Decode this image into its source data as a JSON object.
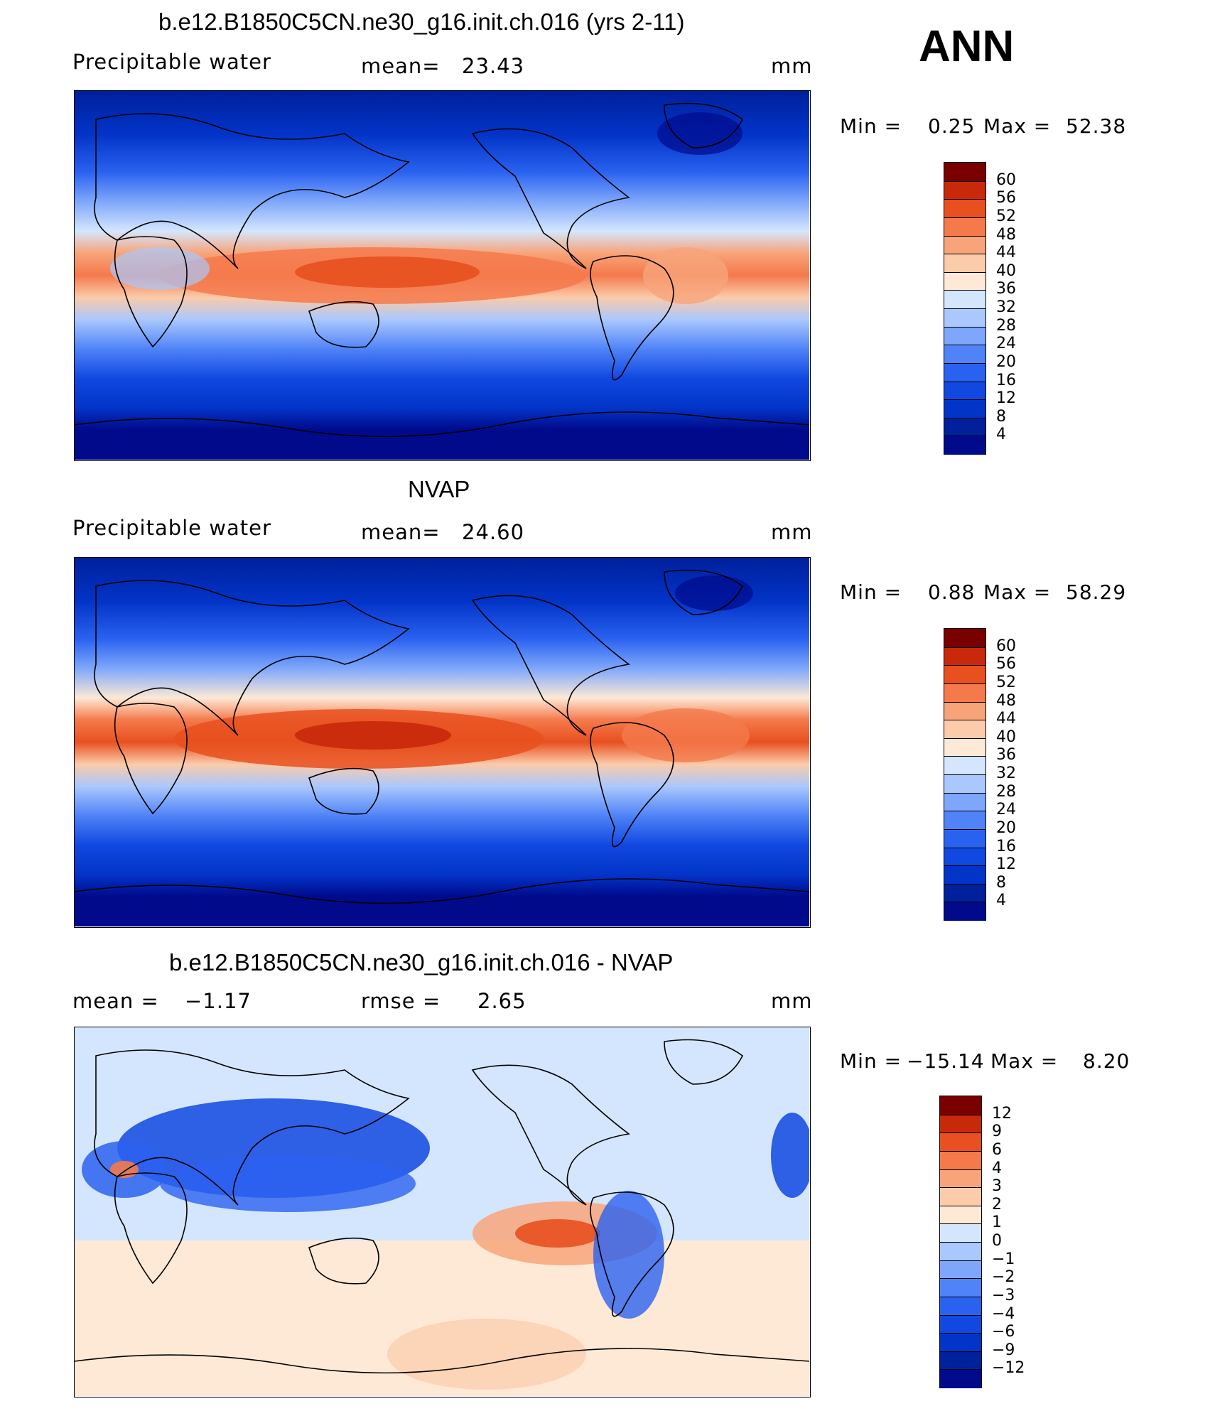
{
  "season": "ANN",
  "panels": [
    {
      "id": "model",
      "title": "b.e12.B1850C5CN.ne30_g16.init.ch.016 (yrs 2-11)",
      "left_text": "Precipitable  water",
      "stat_label": "mean=",
      "stat_value": "23.43",
      "units": "mm",
      "min_label": "Min  =",
      "min_value": "0.25",
      "max_label": "Max  =",
      "max_value": "52.38",
      "levels": [
        "60",
        "56",
        "52",
        "48",
        "44",
        "40",
        "36",
        "32",
        "28",
        "24",
        "20",
        "16",
        "12",
        "8",
        "4"
      ]
    },
    {
      "id": "obs",
      "title": "NVAP",
      "left_text": "Precipitable  water",
      "stat_label": "mean=",
      "stat_value": "24.60",
      "units": "mm",
      "min_label": "Min  =",
      "min_value": "0.88",
      "max_label": "Max  =",
      "max_value": "58.29",
      "levels": [
        "60",
        "56",
        "52",
        "48",
        "44",
        "40",
        "36",
        "32",
        "28",
        "24",
        "20",
        "16",
        "12",
        "8",
        "4"
      ]
    },
    {
      "id": "diff",
      "title": "b.e12.B1850C5CN.ne30_g16.init.ch.016 - NVAP",
      "left_text": "mean  =",
      "left_value": "−1.17",
      "stat_label": "rmse  =",
      "stat_value": "2.65",
      "units": "mm",
      "min_label": "Min  =",
      "min_value": "−15.14",
      "max_label": "Max  =",
      "max_value": "8.20",
      "levels": [
        "12",
        "9",
        "6",
        "4",
        "3",
        "2",
        "1",
        "0",
        "−1",
        "−2",
        "−3",
        "−4",
        "−6",
        "−9",
        "−12"
      ]
    }
  ],
  "colors": {
    "field_scale": [
      "#000a8a",
      "#00209c",
      "#0234c8",
      "#1048e0",
      "#2a62f0",
      "#4f83f7",
      "#7ea7fb",
      "#aac8fd",
      "#d4e6fe",
      "#fde9d6",
      "#fbcbaa",
      "#f8a47a",
      "#f47a4c",
      "#e8501f",
      "#c8290a",
      "#7a0000"
    ],
    "diff_scale": [
      "#000a8a",
      "#00209c",
      "#0234c8",
      "#1048e0",
      "#2a62f0",
      "#4f83f7",
      "#7ea7fb",
      "#aac8fd",
      "#d4e6fe",
      "#fde9d6",
      "#fbcbaa",
      "#f8a47a",
      "#f47a4c",
      "#e8501f",
      "#c8290a",
      "#7a0000"
    ]
  }
}
